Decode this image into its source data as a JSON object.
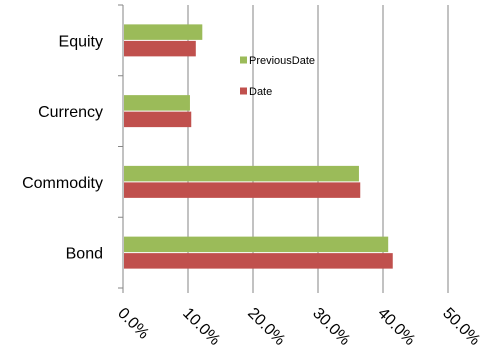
{
  "chart_data": {
    "type": "bar",
    "orientation": "horizontal",
    "categories": [
      "Bond",
      "Commodity",
      "Currency",
      "Equity"
    ],
    "series": [
      {
        "name": "Date",
        "color": "#c0504d",
        "values": [
          41.5,
          36.5,
          10.5,
          11.2
        ]
      },
      {
        "name": "PreviousDate",
        "color": "#9bbb59",
        "values": [
          40.8,
          36.3,
          10.3,
          12.2
        ]
      }
    ],
    "x_ticks": [
      "0.0%",
      "10.0%",
      "20.0%",
      "30.0%",
      "40.0%",
      "50.0%"
    ],
    "xlim": [
      0,
      50
    ],
    "legend_position": "top-right",
    "grid": "vertical",
    "title": "",
    "xlabel": "",
    "ylabel": ""
  }
}
